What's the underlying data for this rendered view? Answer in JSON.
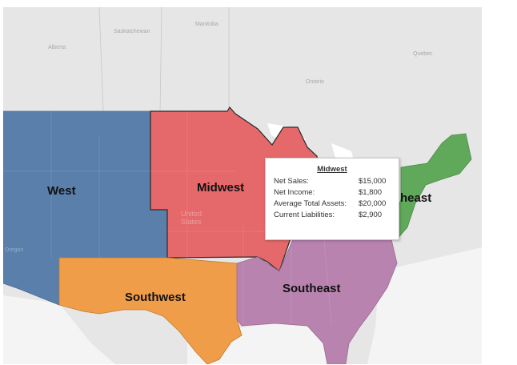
{
  "map": {
    "basemap_labels": {
      "alberta": "Alberta",
      "saskatchewan": "Saskatchewan",
      "manitoba": "Manitoba",
      "ontario": "Ontario",
      "quebec": "Quebec",
      "oregon": "Oregon",
      "united_states": "United States"
    },
    "regions": [
      {
        "key": "west",
        "label": "West",
        "color": "#5a7fab"
      },
      {
        "key": "midwest",
        "label": "Midwest",
        "color": "#e5686a"
      },
      {
        "key": "southwest",
        "label": "Southwest",
        "color": "#f09d4a"
      },
      {
        "key": "southeast",
        "label": "Southeast",
        "color": "#b983b0"
      },
      {
        "key": "northeast",
        "label": "heast",
        "color": "#60a95a"
      }
    ]
  },
  "tooltip": {
    "title": "Midwest",
    "rows": [
      {
        "label": "Net Sales:",
        "value": "$15,000"
      },
      {
        "label": "Net Income:",
        "value": "$1,800"
      },
      {
        "label": "Average Total Assets:",
        "value": "$20,000"
      },
      {
        "label": "Current Liabilities:",
        "value": "$2,900"
      }
    ]
  }
}
